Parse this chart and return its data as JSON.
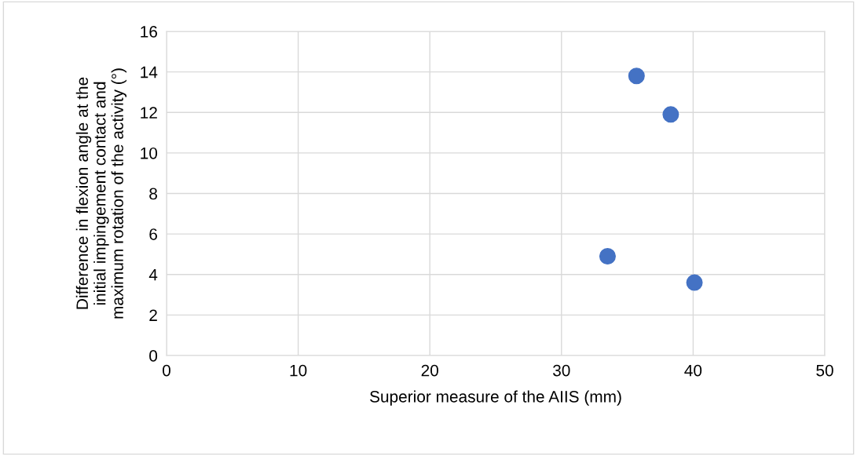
{
  "chart_data": {
    "type": "scatter",
    "xlabel": "Superior measure of the AIIS (mm)",
    "ylabel": "Difference in flexion angle at the\ninitial impingement contact and\nmaximum rotation of the activity (°)",
    "x": [
      35.7,
      38.3,
      33.5,
      40.1
    ],
    "series": [
      {
        "color": "#4472c4",
        "values": [
          13.8,
          11.9,
          4.9,
          3.6
        ]
      }
    ],
    "xlim": [
      0,
      50
    ],
    "xticks": [
      0,
      10,
      20,
      30,
      40,
      50
    ],
    "ylim": [
      0,
      16
    ],
    "yticks": [
      0,
      2,
      4,
      6,
      8,
      10,
      12,
      14,
      16
    ],
    "grid": true,
    "marker": "circle",
    "legend": false
  }
}
